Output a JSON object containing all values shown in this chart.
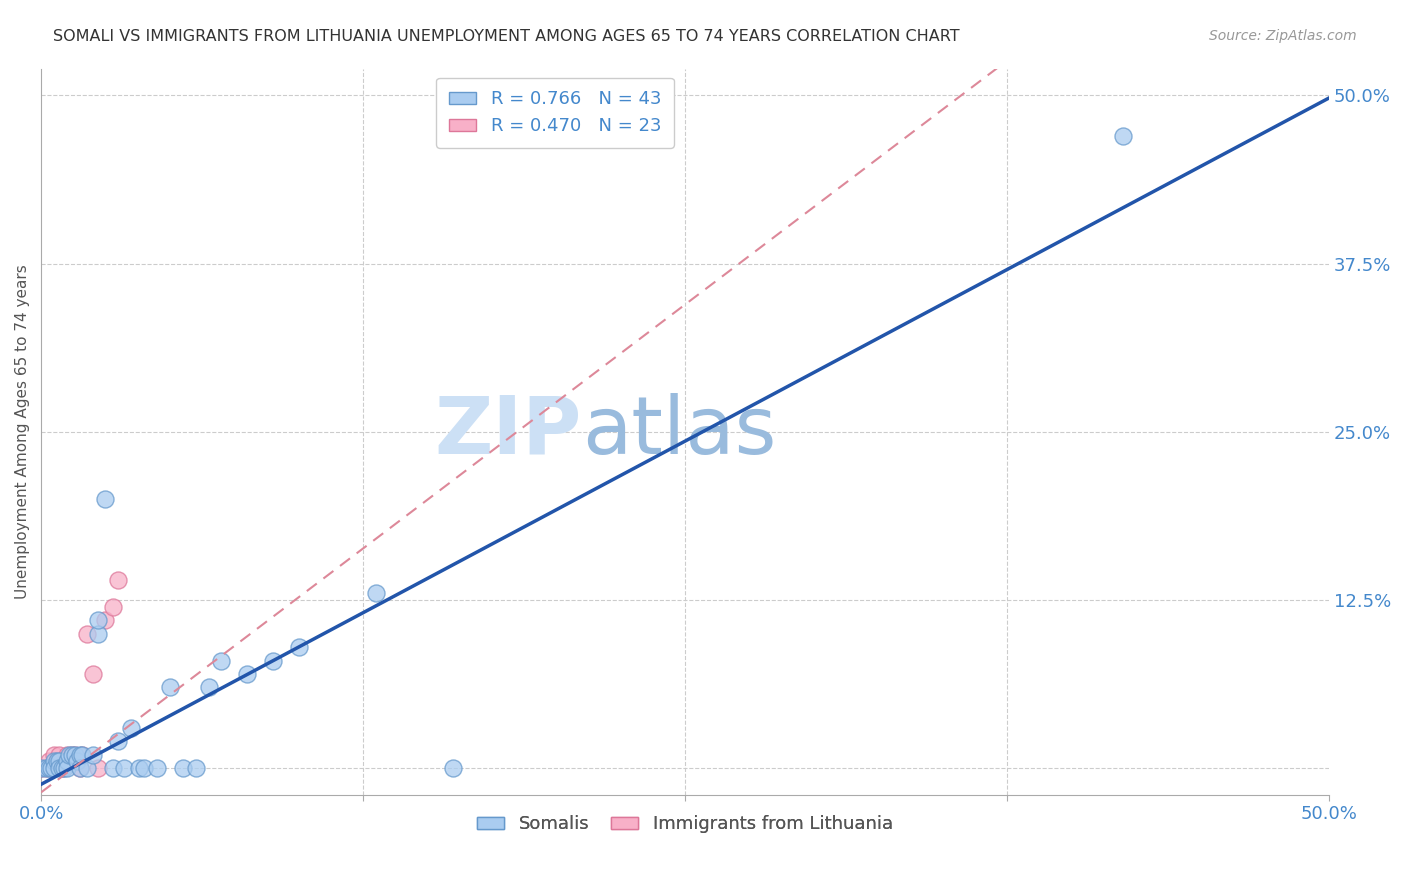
{
  "title": "SOMALI VS IMMIGRANTS FROM LITHUANIA UNEMPLOYMENT AMONG AGES 65 TO 74 YEARS CORRELATION CHART",
  "source": "Source: ZipAtlas.com",
  "ylabel": "Unemployment Among Ages 65 to 74 years",
  "xlim": [
    0.0,
    0.5
  ],
  "ylim": [
    -0.02,
    0.52
  ],
  "ytick_positions": [
    0.0,
    0.125,
    0.25,
    0.375,
    0.5
  ],
  "legend_r1": "R = 0.766",
  "legend_n1": "N = 43",
  "legend_r2": "R = 0.470",
  "legend_n2": "N = 23",
  "somali_color": "#aaccf0",
  "somali_edge": "#6699cc",
  "lithuania_color": "#f8b0c8",
  "lithuania_edge": "#dd7799",
  "trendline1_color": "#2255aa",
  "trendline2_color": "#dd8899",
  "watermark_zip_color": "#cce0f5",
  "watermark_atlas_color": "#99bbdd",
  "grid_color": "#cccccc",
  "title_color": "#333333",
  "axis_label_color": "#4488cc",
  "trendline1_slope": 1.02,
  "trendline1_intercept": -0.012,
  "trendline2_slope": 1.45,
  "trendline2_intercept": -0.018,
  "somali_x": [
    0.0,
    0.002,
    0.003,
    0.004,
    0.005,
    0.005,
    0.006,
    0.007,
    0.007,
    0.008,
    0.009,
    0.01,
    0.01,
    0.011,
    0.012,
    0.013,
    0.014,
    0.015,
    0.015,
    0.016,
    0.018,
    0.02,
    0.022,
    0.022,
    0.025,
    0.028,
    0.03,
    0.032,
    0.035,
    0.038,
    0.04,
    0.045,
    0.05,
    0.055,
    0.06,
    0.065,
    0.07,
    0.08,
    0.09,
    0.1,
    0.13,
    0.16,
    0.42
  ],
  "somali_y": [
    0.0,
    0.0,
    0.0,
    0.0,
    0.005,
    0.0,
    0.005,
    0.005,
    0.0,
    0.0,
    0.0,
    0.005,
    0.0,
    0.01,
    0.01,
    0.01,
    0.005,
    0.01,
    0.0,
    0.01,
    0.0,
    0.01,
    0.1,
    0.11,
    0.2,
    0.0,
    0.02,
    0.0,
    0.03,
    0.0,
    0.0,
    0.0,
    0.06,
    0.0,
    0.0,
    0.06,
    0.08,
    0.07,
    0.08,
    0.09,
    0.13,
    0.0,
    0.47
  ],
  "lithuania_x": [
    0.0,
    0.002,
    0.003,
    0.004,
    0.005,
    0.006,
    0.007,
    0.008,
    0.009,
    0.01,
    0.01,
    0.011,
    0.012,
    0.013,
    0.014,
    0.015,
    0.016,
    0.018,
    0.02,
    0.022,
    0.025,
    0.028,
    0.03
  ],
  "lithuania_y": [
    0.0,
    0.0,
    0.005,
    0.0,
    0.01,
    0.005,
    0.01,
    0.0,
    0.005,
    0.01,
    0.005,
    0.008,
    0.01,
    0.01,
    0.005,
    0.0,
    0.01,
    0.1,
    0.07,
    0.0,
    0.11,
    0.12,
    0.14
  ]
}
